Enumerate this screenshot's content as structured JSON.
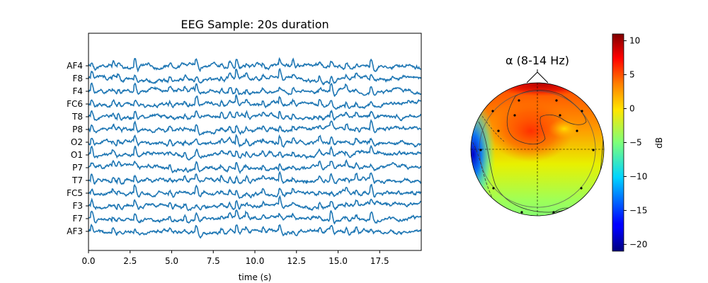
{
  "chart_data": [
    {
      "type": "line",
      "title": "EEG Sample: 20s duration",
      "xlabel": "time (s)",
      "ylabel": "",
      "xlim": [
        0,
        20
      ],
      "x_ticks": [
        "0.0",
        "2.5",
        "5.0",
        "7.5",
        "10.0",
        "12.5",
        "15.0",
        "17.5"
      ],
      "x_tick_values": [
        0,
        2.5,
        5.0,
        7.5,
        10.0,
        12.5,
        15.0,
        17.5
      ],
      "channels": [
        "AF4",
        "F8",
        "F4",
        "FC6",
        "T8",
        "P8",
        "O2",
        "O1",
        "P7",
        "T7",
        "FC5",
        "F3",
        "F7",
        "AF3"
      ],
      "series_color": "#1f77b4",
      "grid": false
    },
    {
      "type": "heatmap",
      "title": "α (8-14 Hz)",
      "colorbar_label": "dB",
      "colorbar_ticks": [
        "10",
        "5",
        "0",
        "−5",
        "−10",
        "−15",
        "−20"
      ],
      "colorbar_tick_values": [
        10,
        5,
        0,
        -5,
        -10,
        -15,
        -20
      ],
      "clim": [
        -21,
        11
      ],
      "colormap": "jet"
    }
  ]
}
